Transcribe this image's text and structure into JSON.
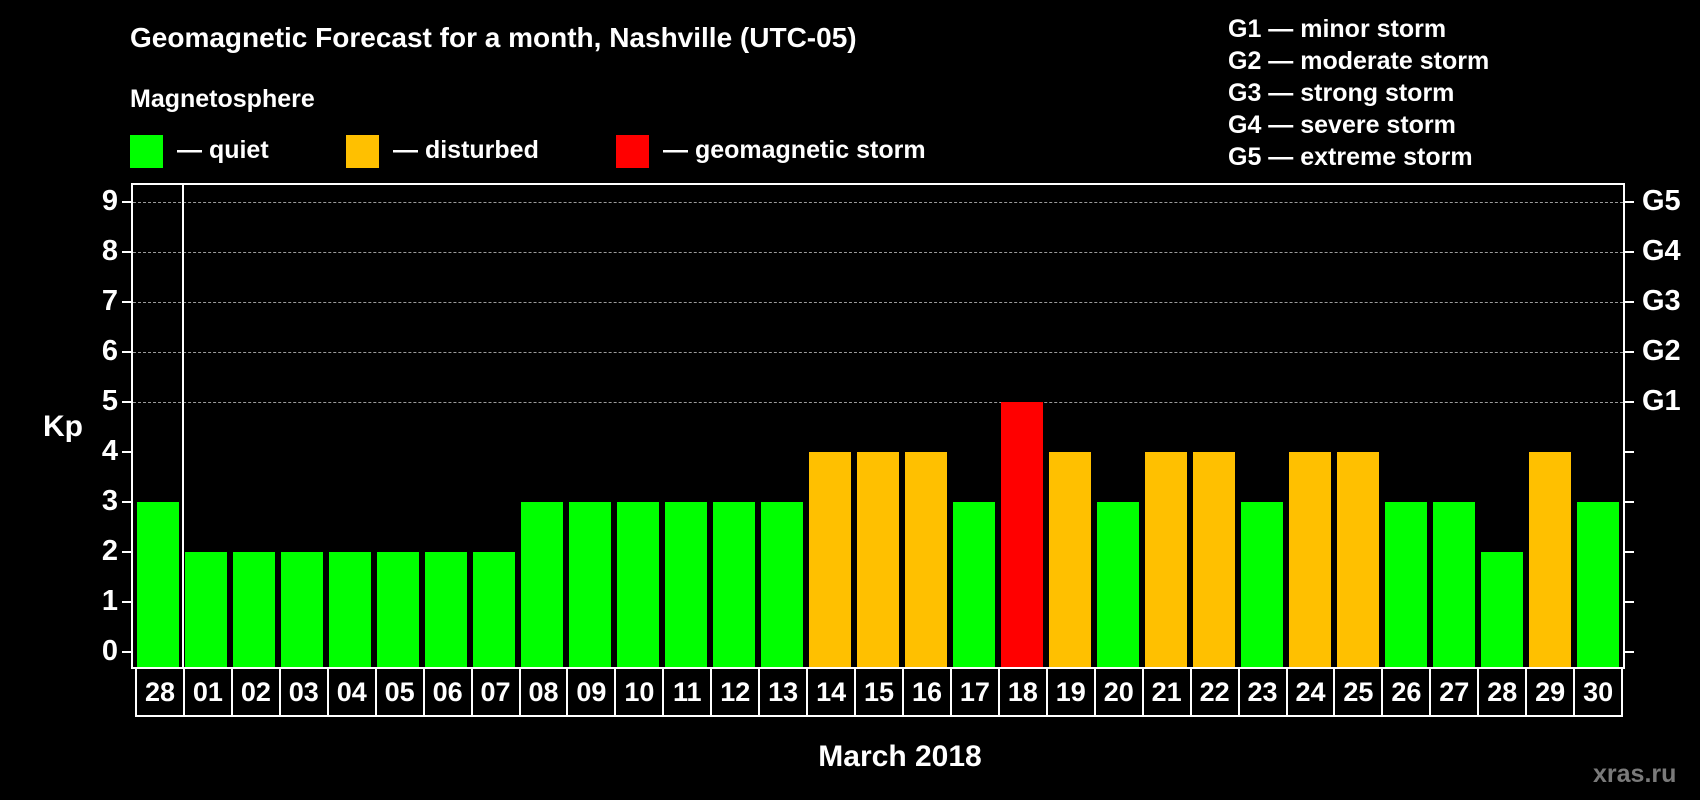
{
  "header": {
    "title": "Geomagnetic Forecast for a month, Nashville (UTC-05)",
    "magnetosphere_title": "Magnetosphere"
  },
  "legend": {
    "items": [
      {
        "label": "— quiet",
        "color": "#00FF00"
      },
      {
        "label": "— disturbed",
        "color": "#FFC000"
      },
      {
        "label": "— geomagnetic storm",
        "color": "#FF0000"
      }
    ]
  },
  "g_scale_legend": [
    "G1 — minor storm",
    "G2 — moderate storm",
    "G3 — strong storm",
    "G4 — severe storm",
    "G5 — extreme storm"
  ],
  "axes": {
    "y_label": "Kp",
    "y_ticks": [
      "0",
      "1",
      "2",
      "3",
      "4",
      "5",
      "6",
      "7",
      "8",
      "9"
    ],
    "right_ticks": [
      {
        "kp": 5,
        "label": "G1"
      },
      {
        "kp": 6,
        "label": "G2"
      },
      {
        "kp": 7,
        "label": "G3"
      },
      {
        "kp": 8,
        "label": "G4"
      },
      {
        "kp": 9,
        "label": "G5"
      }
    ],
    "x_label": "March 2018"
  },
  "watermark": "xras.ru",
  "colors": {
    "quiet": "#00FF00",
    "disturbed": "#FFC000",
    "storm": "#FF0000",
    "background": "#000000",
    "grid": "#9A9A9A"
  },
  "chart_data": {
    "type": "bar",
    "title": "Geomagnetic Forecast for a month, Nashville (UTC-05)",
    "xlabel": "March 2018",
    "ylabel": "Kp",
    "ylim": [
      0,
      9
    ],
    "grid": "dashed horizontal at Kp 5-9",
    "legend_position": "top",
    "categories": [
      "28",
      "01",
      "02",
      "03",
      "04",
      "05",
      "06",
      "07",
      "08",
      "09",
      "10",
      "11",
      "12",
      "13",
      "14",
      "15",
      "16",
      "17",
      "18",
      "19",
      "20",
      "21",
      "22",
      "23",
      "24",
      "25",
      "26",
      "27",
      "28",
      "29",
      "30"
    ],
    "values": [
      3,
      2,
      2,
      2,
      2,
      2,
      2,
      2,
      3,
      3,
      3,
      3,
      3,
      3,
      4,
      4,
      4,
      3,
      5,
      4,
      3,
      4,
      4,
      3,
      4,
      4,
      3,
      3,
      2,
      4,
      3
    ],
    "status": [
      "quiet",
      "quiet",
      "quiet",
      "quiet",
      "quiet",
      "quiet",
      "quiet",
      "quiet",
      "quiet",
      "quiet",
      "quiet",
      "quiet",
      "quiet",
      "quiet",
      "disturbed",
      "disturbed",
      "disturbed",
      "quiet",
      "storm",
      "disturbed",
      "quiet",
      "disturbed",
      "disturbed",
      "quiet",
      "disturbed",
      "disturbed",
      "quiet",
      "quiet",
      "quiet",
      "disturbed",
      "quiet"
    ]
  }
}
